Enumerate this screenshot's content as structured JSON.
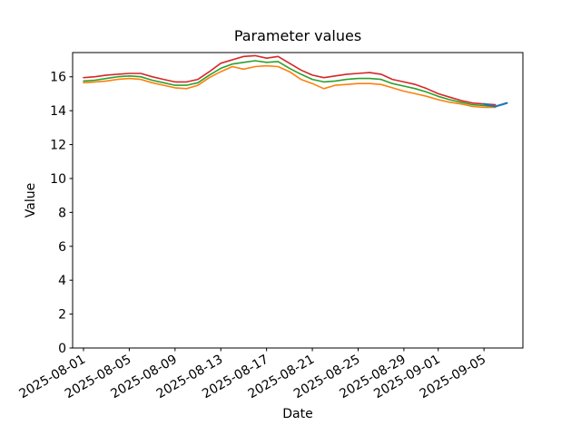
{
  "chart_data": {
    "type": "line",
    "title": "Parameter values",
    "xlabel": "Date",
    "ylabel": "Value",
    "grid": false,
    "legend": null,
    "x_start_date": "2025-08-01",
    "xlim_days": [
      -0.95,
      38.4
    ],
    "ylim": [
      0,
      17.43
    ],
    "y_ticks": [
      0,
      2,
      4,
      6,
      8,
      10,
      12,
      14,
      16
    ],
    "x_tick_labels": [
      "2025-08-01",
      "2025-08-05",
      "2025-08-09",
      "2025-08-13",
      "2025-08-17",
      "2025-08-21",
      "2025-08-25",
      "2025-08-29",
      "2025-09-01",
      "2025-09-05"
    ],
    "x_tick_rotation_deg": 30,
    "dates": [
      "2025-08-01",
      "2025-08-02",
      "2025-08-03",
      "2025-08-04",
      "2025-08-05",
      "2025-08-06",
      "2025-08-07",
      "2025-08-08",
      "2025-08-09",
      "2025-08-10",
      "2025-08-11",
      "2025-08-12",
      "2025-08-13",
      "2025-08-14",
      "2025-08-15",
      "2025-08-16",
      "2025-08-17",
      "2025-08-18",
      "2025-08-19",
      "2025-08-20",
      "2025-08-21",
      "2025-08-22",
      "2025-08-23",
      "2025-08-24",
      "2025-08-25",
      "2025-08-26",
      "2025-08-27",
      "2025-08-28",
      "2025-08-29",
      "2025-08-30",
      "2025-08-31",
      "2025-09-01",
      "2025-09-02",
      "2025-09-03",
      "2025-09-04",
      "2025-09-05",
      "2025-09-06"
    ],
    "series": [
      {
        "name": "series-orange",
        "color": "#ff7f0e",
        "line_width": 1.6,
        "values": [
          15.65,
          15.7,
          15.75,
          15.85,
          15.9,
          15.85,
          15.65,
          15.5,
          15.35,
          15.3,
          15.5,
          15.95,
          16.3,
          16.6,
          16.45,
          16.6,
          16.65,
          16.6,
          16.3,
          15.85,
          15.6,
          15.3,
          15.5,
          15.55,
          15.6,
          15.6,
          15.55,
          15.35,
          15.15,
          15.0,
          14.85,
          14.65,
          14.5,
          14.4,
          14.25,
          14.2,
          14.2
        ]
      },
      {
        "name": "series-green",
        "color": "#2ca02c",
        "line_width": 1.6,
        "values": [
          15.75,
          15.8,
          15.9,
          16.0,
          16.05,
          16.0,
          15.8,
          15.65,
          15.5,
          15.5,
          15.65,
          16.1,
          16.5,
          16.75,
          16.85,
          16.95,
          16.85,
          16.9,
          16.5,
          16.15,
          15.85,
          15.7,
          15.75,
          15.85,
          15.9,
          15.9,
          15.85,
          15.6,
          15.45,
          15.3,
          15.1,
          14.85,
          14.65,
          14.5,
          14.35,
          14.3,
          14.25
        ]
      },
      {
        "name": "series-red",
        "color": "#d62728",
        "line_width": 1.6,
        "values": [
          15.95,
          16.0,
          16.1,
          16.15,
          16.2,
          16.2,
          16.0,
          15.85,
          15.7,
          15.7,
          15.85,
          16.3,
          16.8,
          17.0,
          17.2,
          17.25,
          17.1,
          17.2,
          16.8,
          16.4,
          16.1,
          15.95,
          16.05,
          16.15,
          16.2,
          16.25,
          16.15,
          15.85,
          15.7,
          15.55,
          15.3,
          15.0,
          14.8,
          14.6,
          14.45,
          14.4,
          14.35
        ]
      },
      {
        "name": "series-blue",
        "color": "#1f77b4",
        "line_width": 2.2,
        "dates": [
          "2025-09-05",
          "2025-09-06",
          "2025-09-07"
        ],
        "values": [
          14.4,
          14.25,
          14.45
        ]
      }
    ]
  }
}
